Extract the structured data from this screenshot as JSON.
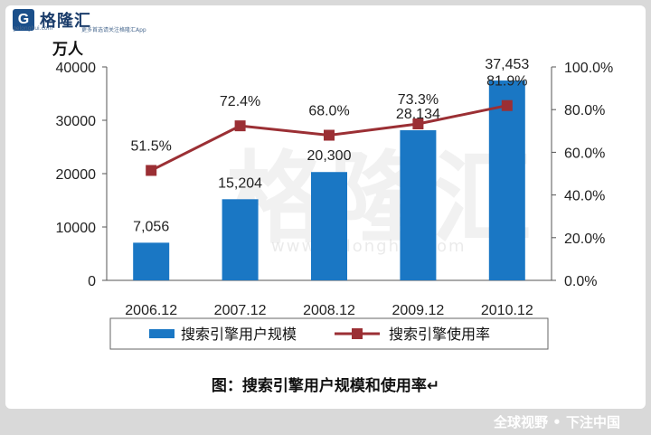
{
  "logo": {
    "mark": "G",
    "name": "格隆汇",
    "url": "gelonghui.com",
    "tagline": "更多首选请关注格隆汇App"
  },
  "watermark": {
    "text": "格隆汇",
    "url": "www.gelonghui.com"
  },
  "caption": "图：搜索引擎用户规模和使用率↵",
  "footer": "全球视野 • 下注中国",
  "colors": {
    "bar": "#1a77c4",
    "line": "#9b2f34",
    "axis": "#555555"
  },
  "chart_data": {
    "type": "bar",
    "categories": [
      "2006.12",
      "2007.12",
      "2008.12",
      "2009.12",
      "2010.12"
    ],
    "series": [
      {
        "name": "搜索引擎用户规模",
        "type": "bar",
        "axis": "left",
        "values": [
          7056,
          15204,
          20300,
          28134,
          37453
        ],
        "labels": [
          "7,056",
          "15,204",
          "20,300",
          "28,134",
          "37,453"
        ]
      },
      {
        "name": "搜索引擎使用率",
        "type": "line",
        "axis": "right",
        "values": [
          51.5,
          72.4,
          68.0,
          73.3,
          81.9
        ],
        "labels": [
          "51.5%",
          "72.4%",
          "68.0%",
          "73.3%",
          "81.9%"
        ]
      }
    ],
    "ylabel": "万人",
    "ylim": [
      0,
      40000
    ],
    "yticks": [
      "0",
      "10000",
      "20000",
      "30000",
      "40000"
    ],
    "y2lim": [
      0,
      100
    ],
    "y2ticks": [
      "0.0%",
      "20.0%",
      "40.0%",
      "60.0%",
      "80.0%",
      "100.0%"
    ],
    "legend_position": "bottom",
    "grid": false
  }
}
